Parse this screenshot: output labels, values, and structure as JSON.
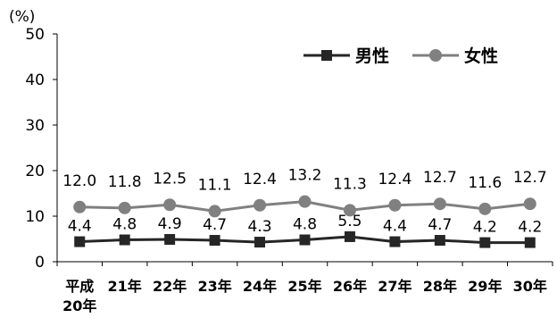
{
  "chart_data": {
    "type": "line",
    "unit_label": "(%)",
    "categories": [
      [
        "平成",
        "20年"
      ],
      [
        "21年"
      ],
      [
        "22年"
      ],
      [
        "23年"
      ],
      [
        "24年"
      ],
      [
        "25年"
      ],
      [
        "26年"
      ],
      [
        "27年"
      ],
      [
        "28年"
      ],
      [
        "29年"
      ],
      [
        "30年"
      ]
    ],
    "ylim": [
      0,
      50
    ],
    "yticks": [
      0,
      10,
      20,
      30,
      40,
      50
    ],
    "grid": false,
    "legend_position": "top-right",
    "series": [
      {
        "name": "男性",
        "marker": "square",
        "color": "#262626",
        "values": [
          4.4,
          4.8,
          4.9,
          4.7,
          4.3,
          4.8,
          5.5,
          4.4,
          4.7,
          4.2,
          4.2
        ],
        "labels": [
          "4.4",
          "4.8",
          "4.9",
          "4.7",
          "4.3",
          "4.8",
          "5.5",
          "4.4",
          "4.7",
          "4.2",
          "4.2"
        ]
      },
      {
        "name": "女性",
        "marker": "circle",
        "color": "#808080",
        "values": [
          12.0,
          11.8,
          12.5,
          11.1,
          12.4,
          13.2,
          11.3,
          12.4,
          12.7,
          11.6,
          12.7
        ],
        "labels": [
          "12.0",
          "11.8",
          "12.5",
          "11.1",
          "12.4",
          "13.2",
          "11.3",
          "12.4",
          "12.7",
          "11.6",
          "12.7"
        ]
      }
    ]
  }
}
